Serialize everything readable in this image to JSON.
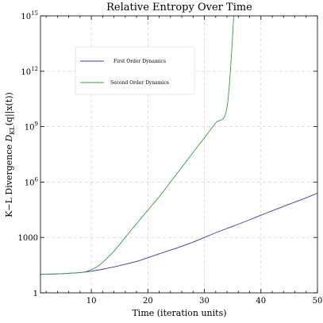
{
  "chart_data": {
    "type": "line",
    "title": "Relative Entropy Over Time",
    "xlabel": "Time (iteration units)",
    "ylabel": {
      "prefix": "K−L Divergence ",
      "symbol": "D",
      "subscript": "KL",
      "suffix": "(q||x(t))"
    },
    "xlim": [
      1,
      50
    ],
    "ylim": [
      1,
      1000000000000000.0
    ],
    "yscale": "log",
    "grid": true,
    "legend_position": "upper-left",
    "x_ticks": [
      10,
      20,
      30,
      40,
      50
    ],
    "x_tick_labels": [
      "10",
      "20",
      "30",
      "40",
      "50"
    ],
    "y_ticks": [
      1,
      1000,
      1000000.0,
      1000000000.0,
      1000000000000.0,
      1000000000000000.0
    ],
    "y_tick_labels": [
      {
        "base": "1",
        "exp": ""
      },
      {
        "base": "1000",
        "exp": ""
      },
      {
        "base": "10",
        "exp": "6"
      },
      {
        "base": "10",
        "exp": "9"
      },
      {
        "base": "10",
        "exp": "12"
      },
      {
        "base": "10",
        "exp": "15"
      }
    ],
    "series": [
      {
        "name": "First Order Dynamics",
        "color": "#3b3b9e",
        "x": [
          1,
          5,
          8,
          10,
          12,
          15,
          18,
          20,
          22,
          25,
          28,
          30,
          32,
          35,
          38,
          40,
          42,
          45,
          48,
          50
        ],
        "y": [
          10,
          11,
          12.5,
          15,
          19,
          30,
          50,
          80,
          130,
          260,
          560,
          1000,
          1800,
          4000,
          9000,
          16000,
          28000,
          63000,
          140000,
          250000
        ]
      },
      {
        "name": "Second Order Dynamics",
        "color": "#3a9a50",
        "x": [
          1,
          5,
          8,
          9,
          10,
          11,
          12,
          14,
          16,
          18,
          20,
          22,
          24,
          26,
          28,
          30,
          32,
          34,
          35.2
        ],
        "y": [
          10,
          11,
          12.5,
          14,
          18,
          26,
          45,
          180,
          1000,
          5600,
          30000,
          160000,
          1000000,
          6300000,
          40000000,
          250000000,
          1600000000,
          11000000000,
          1000000000000000
        ]
      }
    ]
  }
}
